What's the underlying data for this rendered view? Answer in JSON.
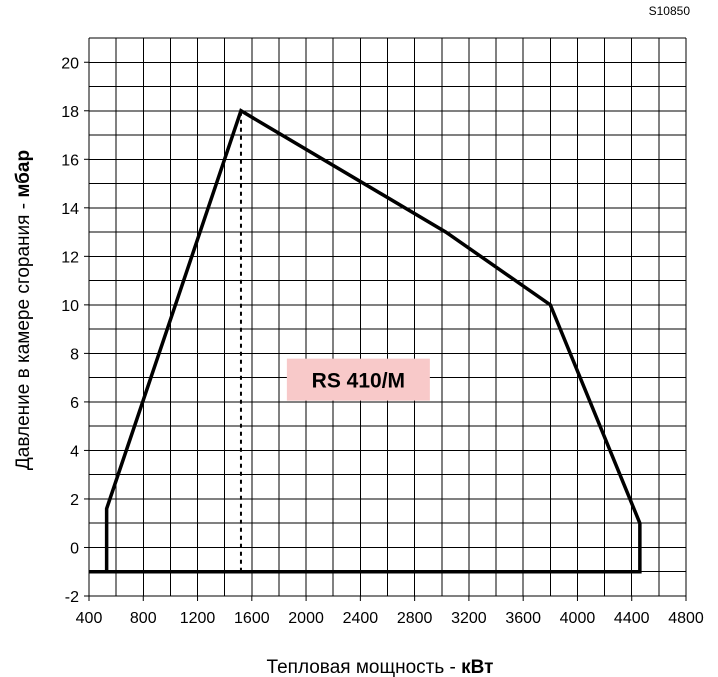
{
  "drawing_code": "S10850",
  "chart_data": {
    "type": "line",
    "model_label": "RS 410/M",
    "xlabel_prefix": "Тепловая мощность - ",
    "xlabel_unit": "кВт",
    "ylabel_prefix": "Давление в камере сгорания - ",
    "ylabel_unit": "мбар",
    "xlim": [
      400,
      4800
    ],
    "ylim": [
      -2,
      21
    ],
    "x_ticks": [
      400,
      800,
      1200,
      1600,
      2000,
      2400,
      2800,
      3200,
      3600,
      4000,
      4400,
      4800
    ],
    "y_ticks": [
      -2,
      0,
      2,
      4,
      6,
      8,
      10,
      12,
      14,
      16,
      18,
      20
    ],
    "x_minor_step": 200,
    "y_minor_step": 1,
    "grid": true,
    "series": [
      {
        "points": [
          {
            "x": 530,
            "y": -1
          },
          {
            "x": 530,
            "y": 1.6
          },
          {
            "x": 1520,
            "y": 18
          },
          {
            "x": 3030,
            "y": 13
          },
          {
            "x": 3800,
            "y": 10
          },
          {
            "x": 4460,
            "y": 1
          },
          {
            "x": 4460,
            "y": -1
          },
          {
            "x": 400,
            "y": -1
          }
        ]
      }
    ],
    "dashed_reference": {
      "x": 1520,
      "y_from": -1,
      "y_to": 18
    },
    "colors": {
      "line": "#000000",
      "grid": "#000000",
      "label_bg": "#f8c9c9"
    }
  }
}
